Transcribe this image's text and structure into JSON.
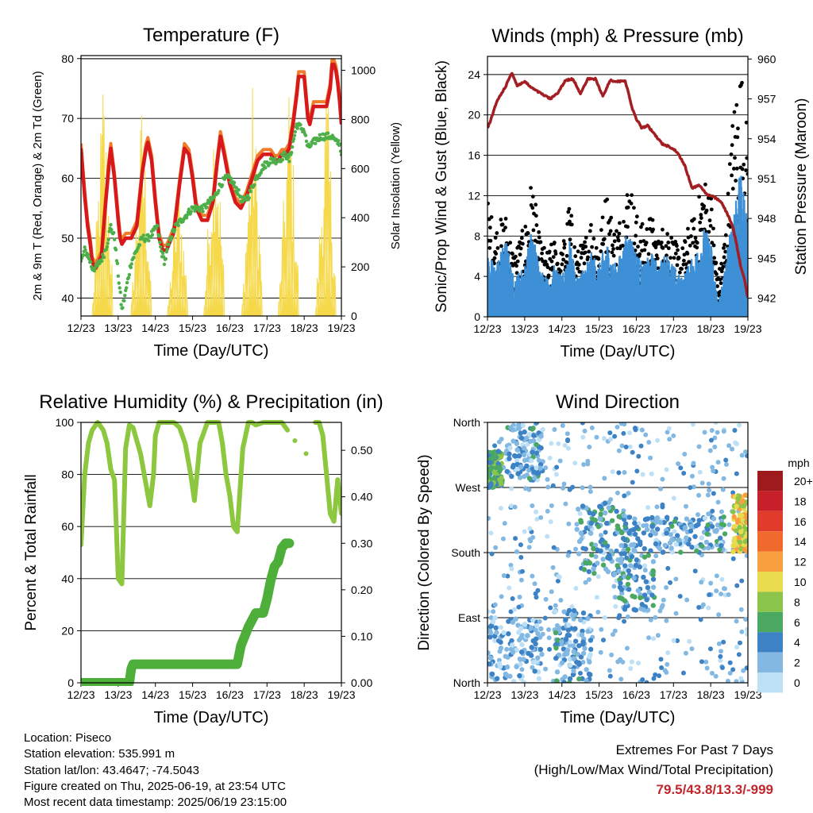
{
  "chart_data": [
    {
      "type": "line",
      "title": "Temperature (F)",
      "xlabel": "Time (Day/UTC)",
      "ylabel": "2m & 9m T (Red, Orange) & 2m Td (Green)",
      "y2label": "Solar Insolation (Yellow)",
      "x_ticks": [
        "12/23",
        "13/23",
        "14/23",
        "15/23",
        "16/23",
        "17/23",
        "18/23",
        "19/23"
      ],
      "ylim": [
        37,
        80.5
      ],
      "y_ticks": [
        40,
        50,
        60,
        70,
        80
      ],
      "y2lim": [
        0,
        1060
      ],
      "y2_ticks": [
        0,
        200,
        400,
        600,
        800,
        1000
      ],
      "grid": "horizontal",
      "colors": {
        "t2m": "#d7191c",
        "t9m": "#f07b2a",
        "td": "#4daf4a",
        "solar": "#f5d94a"
      },
      "series": [
        {
          "name": "2m T",
          "x": [
            0,
            0.05,
            0.1,
            0.18,
            0.25,
            0.3,
            0.4,
            0.55,
            0.65,
            0.75,
            0.8,
            0.9,
            1.0,
            1.05,
            1.1,
            1.2,
            1.35,
            1.5,
            1.65,
            1.75,
            1.8,
            1.9,
            2.0,
            2.1,
            2.2,
            2.3,
            2.5,
            2.65,
            2.78,
            2.9,
            3.0,
            3.1,
            3.25,
            3.4,
            3.55,
            3.65,
            3.75,
            3.85,
            4.0,
            4.15,
            4.3,
            4.45,
            4.6,
            4.75,
            4.9,
            5.0,
            5.1,
            5.2,
            5.3,
            5.4,
            5.5,
            5.6,
            5.7,
            5.8,
            5.85,
            5.9,
            6.0,
            6.1,
            6.15,
            6.25,
            6.4,
            6.5,
            6.6,
            6.7,
            6.75,
            6.8,
            6.85,
            6.9,
            6.95,
            7.0
          ],
          "y": [
            65,
            61,
            57,
            52,
            49,
            46,
            45,
            47,
            55,
            62,
            65,
            60,
            53,
            50,
            49,
            50,
            50,
            52,
            61,
            65,
            66,
            63,
            56,
            50,
            48,
            48,
            51,
            59,
            65,
            64,
            60,
            55,
            53,
            53,
            56,
            62,
            67,
            64,
            59,
            56,
            55,
            57,
            60,
            63,
            64,
            64,
            64,
            63,
            63,
            64,
            64,
            65,
            69,
            74,
            77,
            77,
            77,
            70,
            69,
            72,
            72,
            72,
            72,
            75,
            79,
            79,
            78,
            76,
            73,
            69
          ]
        },
        {
          "name": "Td",
          "x": [
            0,
            0.1,
            0.2,
            0.3,
            0.4,
            0.5,
            0.6,
            0.7,
            0.8,
            0.9,
            1.0,
            1.1,
            1.2,
            1.35,
            1.5,
            1.65,
            1.8,
            1.95,
            2.05,
            2.15,
            2.25,
            2.4,
            2.55,
            2.7,
            2.85,
            3.0,
            3.1,
            3.2,
            3.3,
            3.45,
            3.6,
            3.75,
            3.9,
            4.0,
            4.2,
            4.35,
            4.5,
            4.7,
            4.9,
            5.1,
            5.3,
            5.5,
            5.6,
            5.8,
            6.0,
            6.1,
            6.25,
            6.45,
            6.6,
            6.75,
            6.85,
            6.95,
            7.0
          ],
          "y": [
            46,
            48,
            47,
            45,
            45,
            46,
            47,
            49,
            52,
            50,
            44,
            38,
            41,
            46,
            48,
            50,
            50,
            51,
            52,
            48,
            46,
            50,
            52,
            53,
            54,
            55,
            55,
            55,
            55,
            56,
            57,
            59,
            60,
            60,
            58,
            56,
            57,
            60,
            62,
            63,
            63,
            64,
            63,
            69,
            68,
            65,
            66,
            67,
            67,
            67,
            66,
            66,
            64
          ]
        }
      ],
      "solar_peaks": [
        {
          "x": 0.58,
          "y": 1050
        },
        {
          "x": 1.62,
          "y": 920
        },
        {
          "x": 2.6,
          "y": 620
        },
        {
          "x": 3.58,
          "y": 1000
        },
        {
          "x": 4.6,
          "y": 990
        },
        {
          "x": 5.58,
          "y": 1010
        },
        {
          "x": 6.58,
          "y": 1020
        }
      ]
    },
    {
      "type": "scatter",
      "title": "Winds (mph) & Pressure (mb)",
      "xlabel": "Time (Day/UTC)",
      "ylabel": "Sonic/Prop Wind & Gust (Blue, Black)",
      "y2label": "Station Pressure (Maroon)",
      "x_ticks": [
        "12/23",
        "13/23",
        "14/23",
        "15/23",
        "16/23",
        "17/23",
        "18/23",
        "19/23"
      ],
      "ylim": [
        0,
        25.8
      ],
      "y_ticks": [
        0,
        4,
        8,
        12,
        16,
        20,
        24
      ],
      "y2lim": [
        940.6,
        960.2
      ],
      "y2_ticks": [
        942,
        945,
        948,
        951,
        954,
        957,
        960
      ],
      "grid": "horizontal",
      "colors": {
        "wind": "#3d8fd6",
        "gust": "#000000",
        "pressure": "#a31e22"
      },
      "wind_envelope": [
        [
          0,
          5
        ],
        [
          0.2,
          4
        ],
        [
          0.5,
          6
        ],
        [
          0.7,
          3
        ],
        [
          1.0,
          4
        ],
        [
          1.2,
          7
        ],
        [
          1.4,
          4
        ],
        [
          1.6,
          3
        ],
        [
          1.8,
          4
        ],
        [
          2.0,
          3
        ],
        [
          2.2,
          6
        ],
        [
          2.4,
          3
        ],
        [
          2.6,
          4
        ],
        [
          2.8,
          5
        ],
        [
          3.0,
          4
        ],
        [
          3.2,
          6
        ],
        [
          3.4,
          4
        ],
        [
          3.6,
          5
        ],
        [
          3.8,
          7
        ],
        [
          4.0,
          5
        ],
        [
          4.2,
          4
        ],
        [
          4.4,
          5
        ],
        [
          4.6,
          4
        ],
        [
          4.8,
          5
        ],
        [
          5.0,
          4
        ],
        [
          5.2,
          3
        ],
        [
          5.4,
          4
        ],
        [
          5.6,
          5
        ],
        [
          5.8,
          7
        ],
        [
          6.0,
          6
        ],
        [
          6.2,
          1
        ],
        [
          6.4,
          4
        ],
        [
          6.6,
          9
        ],
        [
          6.8,
          11
        ],
        [
          7.0,
          8
        ]
      ],
      "gust_envelope": [
        [
          0,
          9
        ],
        [
          0.2,
          7
        ],
        [
          0.5,
          8
        ],
        [
          0.7,
          5
        ],
        [
          1.0,
          7
        ],
        [
          1.2,
          11
        ],
        [
          1.4,
          6
        ],
        [
          1.6,
          5
        ],
        [
          1.8,
          6
        ],
        [
          2.0,
          5
        ],
        [
          2.2,
          9
        ],
        [
          2.4,
          5
        ],
        [
          2.6,
          6
        ],
        [
          2.8,
          8
        ],
        [
          3.0,
          6
        ],
        [
          3.2,
          10
        ],
        [
          3.4,
          7
        ],
        [
          3.6,
          8
        ],
        [
          3.8,
          11
        ],
        [
          4.0,
          8
        ],
        [
          4.2,
          7
        ],
        [
          4.4,
          8
        ],
        [
          4.6,
          6
        ],
        [
          4.8,
          8
        ],
        [
          5.0,
          6
        ],
        [
          5.2,
          5
        ],
        [
          5.4,
          7
        ],
        [
          5.6,
          8
        ],
        [
          5.8,
          11
        ],
        [
          6.0,
          10
        ],
        [
          6.2,
          3
        ],
        [
          6.4,
          7
        ],
        [
          6.6,
          16
        ],
        [
          6.8,
          20
        ],
        [
          7.0,
          14
        ]
      ],
      "pressure": {
        "x": [
          0,
          0.1,
          0.25,
          0.5,
          0.65,
          0.8,
          1.0,
          1.2,
          1.5,
          1.7,
          1.9,
          2.1,
          2.3,
          2.5,
          2.7,
          2.9,
          3.1,
          3.3,
          3.5,
          3.7,
          3.9,
          4.0,
          4.15,
          4.3,
          4.5,
          4.7,
          4.9,
          5.1,
          5.3,
          5.5,
          5.7,
          5.9,
          6.1,
          6.3,
          6.5,
          6.6,
          6.7,
          6.8,
          6.9,
          7.0
        ],
        "y": [
          954.8,
          955.5,
          956.8,
          958.0,
          959.0,
          958.0,
          958.3,
          957.8,
          957.3,
          957.0,
          957.5,
          958.4,
          958.5,
          957.4,
          958.5,
          958.5,
          957.2,
          958.4,
          958.3,
          958.4,
          956.2,
          955.5,
          954.8,
          955.0,
          954.3,
          953.6,
          953.4,
          953.0,
          952.0,
          950.3,
          950.5,
          949.8,
          949.6,
          949.2,
          948.0,
          947.3,
          946.0,
          944.5,
          943.5,
          942.0
        ]
      }
    },
    {
      "type": "line",
      "title": "Relative Humidity (%) & Precipitation (in)",
      "xlabel": "Time (Day/UTC)",
      "ylabel": "Percent & Total Rainfall",
      "x_ticks": [
        "12/23",
        "13/23",
        "14/23",
        "15/23",
        "16/23",
        "17/23",
        "18/23",
        "19/23"
      ],
      "ylim": [
        0,
        100
      ],
      "y_ticks": [
        0,
        20,
        40,
        60,
        80,
        100
      ],
      "y2lim": [
        0,
        0.56
      ],
      "y2_ticks": [
        "0.00",
        "0.10",
        "0.20",
        "0.30",
        "0.40",
        "0.50"
      ],
      "grid": "horizontal",
      "colors": {
        "rh": "#8dc63f",
        "precip": "#4daf3a"
      },
      "series": [
        {
          "name": "RH",
          "x": [
            0,
            0.1,
            0.2,
            0.3,
            0.45,
            0.6,
            0.7,
            0.8,
            0.9,
            0.95,
            1.0,
            1.1,
            1.2,
            1.3,
            1.4,
            1.6,
            1.75,
            1.85,
            1.95,
            2.0,
            2.1,
            2.2,
            2.3,
            2.5,
            2.65,
            2.8,
            2.95,
            3.05,
            3.2,
            3.4,
            3.55,
            3.7,
            3.8,
            3.9,
            4.0,
            4.1,
            4.2,
            4.35,
            4.5,
            4.6,
            4.7,
            4.9,
            5.0,
            5.2,
            5.4,
            5.55
          ],
          "y": [
            53,
            80,
            92,
            97,
            100,
            97,
            92,
            82,
            78,
            60,
            40,
            38,
            90,
            99,
            98,
            88,
            76,
            68,
            80,
            95,
            100,
            100,
            100,
            100,
            98,
            92,
            80,
            70,
            92,
            100,
            100,
            100,
            92,
            80,
            72,
            60,
            58,
            90,
            100,
            100,
            99,
            100,
            100,
            100,
            100,
            97
          ]
        },
        {
          "name": "RH2",
          "x": [
            6.3,
            6.4,
            6.5,
            6.6,
            6.7,
            6.8,
            6.9,
            7.0
          ],
          "y": [
            100,
            100,
            95,
            80,
            65,
            62,
            78,
            65
          ]
        },
        {
          "name": "Precip",
          "x": [
            0,
            1.3,
            1.35,
            1.4,
            4.2,
            4.3,
            4.5,
            4.7,
            4.9,
            5.0,
            5.1,
            5.2,
            5.3,
            5.4,
            5.5,
            5.6
          ],
          "y": [
            0,
            0,
            0.03,
            0.04,
            0.04,
            0.08,
            0.12,
            0.15,
            0.15,
            0.18,
            0.22,
            0.25,
            0.26,
            0.29,
            0.3,
            0.3
          ]
        }
      ]
    },
    {
      "type": "scatter",
      "title": "Wind Direction",
      "xlabel": "Time (Day/UTC)",
      "ylabel": "Direction (Colored By Speed)",
      "x_ticks": [
        "12/23",
        "13/23",
        "14/23",
        "15/23",
        "16/23",
        "17/23",
        "18/23",
        "19/23"
      ],
      "y_ticks": [
        "North",
        "East",
        "South",
        "West",
        "North"
      ],
      "ylim": [
        0,
        360
      ],
      "grid": "horizontal",
      "legend": {
        "title": "mph",
        "labels": [
          "20+",
          "18",
          "16",
          "14",
          "12",
          "10",
          "8",
          "6",
          "4",
          "2",
          "0"
        ],
        "colors": [
          "#9e1a1c",
          "#c8202a",
          "#e03b2b",
          "#f06a2d",
          "#f8a040",
          "#e8dc4e",
          "#8bc44b",
          "#4aa860",
          "#3c82c4",
          "#82b8e2",
          "#bde0f6"
        ],
        "placement": "right"
      },
      "clusters": [
        {
          "x": [
            0,
            0.4
          ],
          "y": [
            270,
            320
          ],
          "speed": 6
        },
        {
          "x": [
            0.5,
            1.5
          ],
          "y": [
            280,
            360
          ],
          "speed": 3
        },
        {
          "x": [
            0,
            1.5
          ],
          "y": [
            0,
            90
          ],
          "speed": 2
        },
        {
          "x": [
            1.8,
            2.8
          ],
          "y": [
            0,
            100
          ],
          "speed": 3
        },
        {
          "x": [
            2.4,
            3.8
          ],
          "y": [
            150,
            250
          ],
          "speed": 4
        },
        {
          "x": [
            3.5,
            4.5
          ],
          "y": [
            100,
            230
          ],
          "speed": 4
        },
        {
          "x": [
            4.5,
            6.4
          ],
          "y": [
            180,
            230
          ],
          "speed": 3
        },
        {
          "x": [
            6.6,
            7.0
          ],
          "y": [
            180,
            260
          ],
          "speed": 10
        }
      ]
    }
  ],
  "info": {
    "location": "Location: Piseco",
    "elevation": "Station elevation: 535.991 m",
    "latlon": "Station lat/lon: 43.4647; -74.5043",
    "created": "Figure created on Thu, 2025-06-19, at 23:54 UTC",
    "recent": "Most recent data timestamp: 2025/06/19 23:15:00"
  },
  "extremes": {
    "title": "Extremes For Past 7 Days",
    "subtitle": "(High/Low/Max Wind/Total Precipitation)",
    "values": "79.5/43.8/13.3/-999"
  }
}
